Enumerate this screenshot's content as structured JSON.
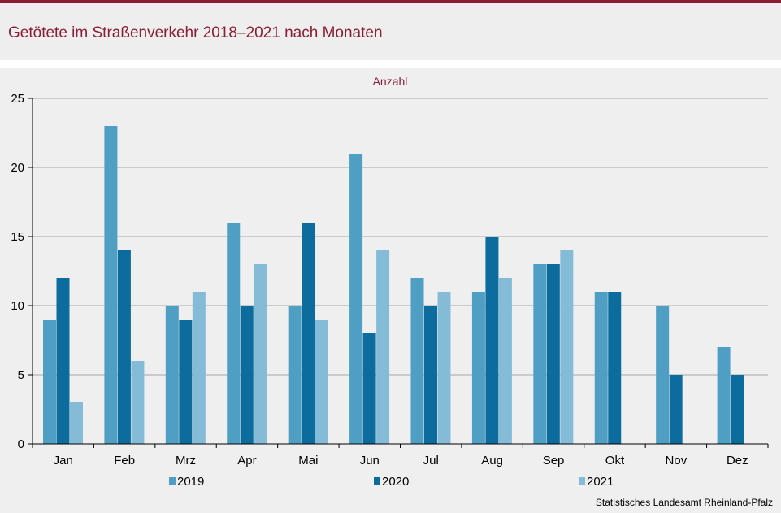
{
  "title": "Getötete im Straßenverkehr 2018–2021 nach Monaten",
  "source": "Statistisches Landesamt Rheinland-Pfalz",
  "chart_data": {
    "type": "bar",
    "title": "Getötete im Straßenverkehr 2018–2021 nach Monaten",
    "ylabel": "Anzahl",
    "xlabel": "",
    "categories": [
      "Jan",
      "Feb",
      "Mrz",
      "Apr",
      "Mai",
      "Jun",
      "Jul",
      "Aug",
      "Sep",
      "Okt",
      "Nov",
      "Dez"
    ],
    "ylim": [
      0,
      25
    ],
    "yticks": [
      0,
      5,
      10,
      15,
      20,
      25
    ],
    "grid": true,
    "legend_position": "bottom",
    "series": [
      {
        "name": "2019",
        "color": "#4f9ec4",
        "values": [
          9,
          23,
          10,
          16,
          10,
          21,
          12,
          11,
          13,
          11,
          10,
          7
        ]
      },
      {
        "name": "2020",
        "color": "#0c6c9e",
        "values": [
          12,
          14,
          9,
          10,
          16,
          8,
          10,
          15,
          13,
          11,
          5,
          5
        ]
      },
      {
        "name": "2021",
        "color": "#84bcd8",
        "values": [
          3,
          6,
          11,
          13,
          9,
          14,
          11,
          12,
          14,
          null,
          null,
          null
        ]
      }
    ]
  }
}
